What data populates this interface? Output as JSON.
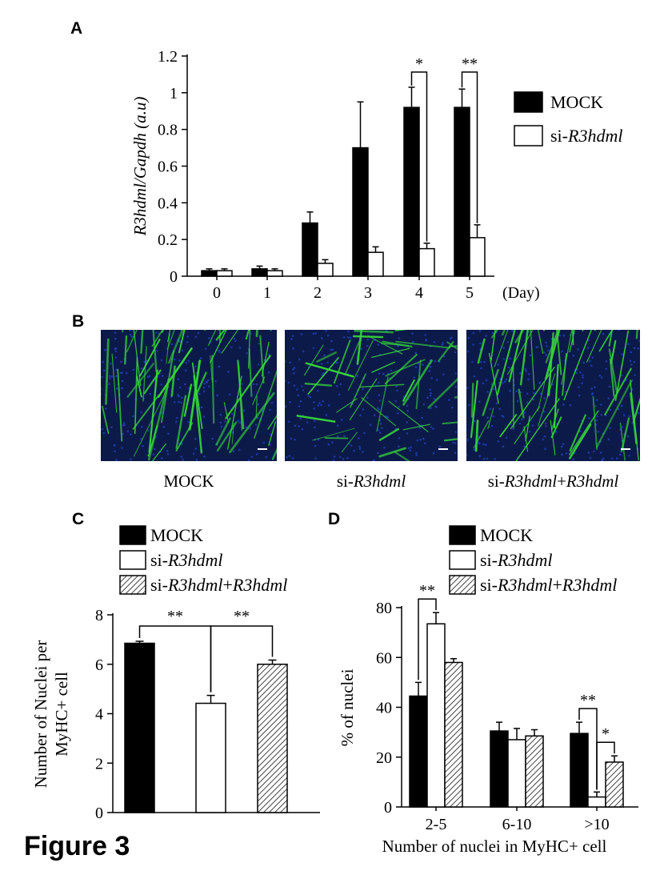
{
  "figure_title": "Figure 3",
  "colors": {
    "mock": "#000000",
    "si": "#ffffff",
    "rescue_hatch": "#444444",
    "micro_bg": "#0c1a4a",
    "micro_fiber": "#37d63a"
  },
  "panels": {
    "A": {
      "label": "A"
    },
    "B": {
      "label": "B",
      "images": [
        {
          "caption_parts": [
            "MOCK"
          ],
          "content": "immunofluorescence-mock"
        },
        {
          "caption_parts": [
            "si-",
            "R3hdml"
          ],
          "content": "immunofluorescence-si"
        },
        {
          "caption_parts": [
            "si-",
            "R3hdml",
            "+",
            "R3hdml"
          ],
          "content": "immunofluorescence-rescue"
        }
      ]
    },
    "C": {
      "label": "C"
    },
    "D": {
      "label": "D"
    }
  },
  "chart_data": [
    {
      "id": "A",
      "type": "bar",
      "categories": [
        "0",
        "1",
        "2",
        "3",
        "4",
        "5"
      ],
      "x_unit": "(Day)",
      "ylabel_parts": [
        "R3hdml/Gapdh",
        " (a.u)"
      ],
      "ylim": [
        0,
        1.2
      ],
      "yticks": [
        "0",
        "0.2",
        "0.4",
        "0.6",
        "0.8",
        "1",
        "1.2"
      ],
      "legend_position": "right",
      "series": [
        {
          "name_parts": [
            "MOCK"
          ],
          "fill": "solid",
          "values": [
            0.03,
            0.04,
            0.29,
            0.7,
            0.92,
            0.92
          ],
          "errors": [
            0.01,
            0.015,
            0.06,
            0.25,
            0.11,
            0.1
          ]
        },
        {
          "name_parts": [
            "si-",
            "R3hdml"
          ],
          "fill": "white",
          "values": [
            0.03,
            0.03,
            0.07,
            0.13,
            0.15,
            0.21
          ],
          "errors": [
            0.01,
            0.01,
            0.02,
            0.03,
            0.03,
            0.07
          ]
        }
      ],
      "significance": [
        {
          "category": 4,
          "label": "*"
        },
        {
          "category": 5,
          "label": "**"
        }
      ]
    },
    {
      "id": "C",
      "type": "bar",
      "categories": [
        "MOCK",
        "si-R3hdml",
        "si-R3hdml+R3hdml"
      ],
      "ylabel_lines": [
        "Number of Nuclei per",
        "MyHC+ cell"
      ],
      "ylim": [
        0,
        8
      ],
      "yticks": [
        "0",
        "2",
        "4",
        "6",
        "8"
      ],
      "legend_position": "top",
      "series": [
        {
          "name_parts": [
            "MOCK"
          ],
          "fill": "solid",
          "value": 6.85,
          "error": 0.08
        },
        {
          "name_parts": [
            "si-",
            "R3hdml"
          ],
          "fill": "white",
          "value": 4.42,
          "error": 0.32
        },
        {
          "name_parts": [
            "si-",
            "R3hdml",
            "+",
            "R3hdml"
          ],
          "fill": "hatch",
          "value": 6.0,
          "error": 0.17
        }
      ],
      "significance": [
        {
          "from": 0,
          "to": 1,
          "label": "**"
        },
        {
          "from": 1,
          "to": 2,
          "label": "**"
        }
      ]
    },
    {
      "id": "D",
      "type": "bar",
      "categories": [
        "2-5",
        "6-10",
        ">10"
      ],
      "xlabel": "Number of nuclei in MyHC+ cell",
      "ylabel": "% of nuclei",
      "ylim": [
        0,
        80
      ],
      "yticks": [
        "0",
        "20",
        "40",
        "60",
        "80"
      ],
      "legend_position": "top",
      "series": [
        {
          "name_parts": [
            "MOCK"
          ],
          "fill": "solid",
          "values": [
            44.5,
            30.5,
            29.5
          ],
          "errors": [
            5.5,
            3.5,
            4.5
          ]
        },
        {
          "name_parts": [
            "si-",
            "R3hdml"
          ],
          "fill": "white",
          "values": [
            73.5,
            27,
            4
          ],
          "errors": [
            4.5,
            4.5,
            2.0
          ]
        },
        {
          "name_parts": [
            "si-",
            "R3hdml",
            "+",
            "R3hdml"
          ],
          "fill": "hatch",
          "values": [
            58,
            28.5,
            18
          ],
          "errors": [
            1.5,
            2.5,
            2.5
          ]
        }
      ],
      "significance": [
        {
          "category": 0,
          "from": 0,
          "to": 1,
          "label": "**"
        },
        {
          "category": 2,
          "from": 0,
          "to": 1,
          "label": "**"
        },
        {
          "category": 2,
          "from": 1,
          "to": 2,
          "label": "*"
        }
      ]
    }
  ]
}
